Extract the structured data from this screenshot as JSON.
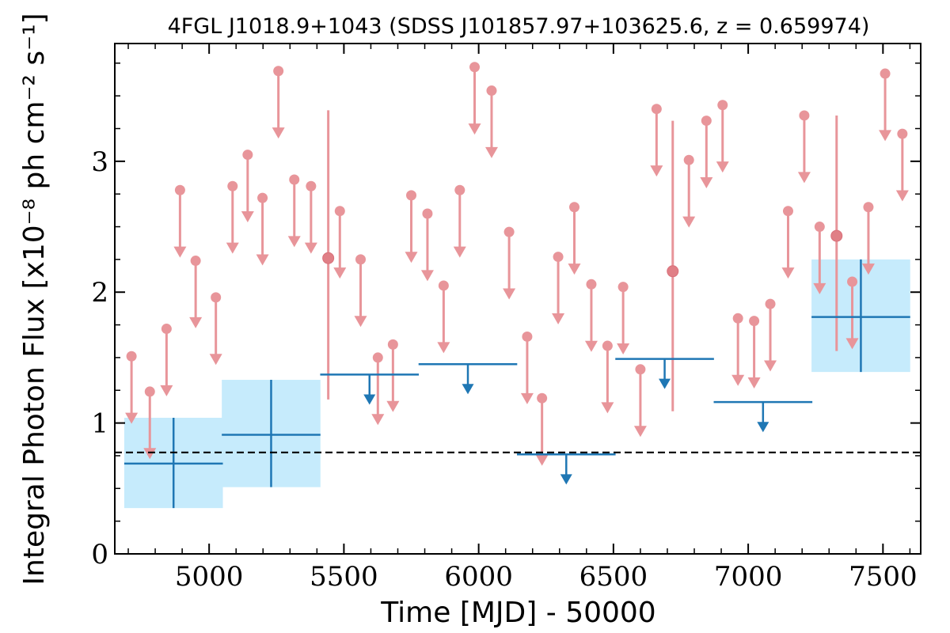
{
  "chart_data": {
    "type": "scatter",
    "title": "4FGL J1018.9+1043 (SDSS J101857.97+103625.6, z = 0.659974)",
    "xlabel": "Time [MJD] - 50000",
    "ylabel": "Integral Photon Flux [x10⁻⁸ ph cm⁻² s⁻¹]",
    "xlim": [
      4650,
      7640
    ],
    "ylim": [
      0,
      3.9
    ],
    "x_ticks": [
      5000,
      5500,
      6000,
      6500,
      7000,
      7500
    ],
    "x_tick_labels": [
      "5000",
      "5500",
      "6000",
      "6500",
      "7000",
      "7500"
    ],
    "y_ticks": [
      0,
      1,
      2,
      3
    ],
    "y_tick_labels": [
      "0",
      "1",
      "2",
      "3"
    ],
    "grid": false,
    "reference_line": {
      "y": 0.775,
      "style": "dashed",
      "color": "#000000"
    },
    "colors": {
      "short_bins": "#e8959a",
      "long_bins": "#1f77b4",
      "uncertainty_box": "#c6ebfc"
    },
    "long_bins": {
      "detections": [
        {
          "x": 4868,
          "xerr": 183,
          "y": 0.69,
          "ylo": 0.35,
          "yhi": 1.04
        },
        {
          "x": 5230,
          "xerr": 183,
          "y": 0.91,
          "ylo": 0.51,
          "yhi": 1.33
        },
        {
          "x": 7418,
          "xerr": 183,
          "y": 1.81,
          "ylo": 1.39,
          "yhi": 2.25
        }
      ],
      "upper_limits": [
        {
          "x": 5595,
          "xerr": 183,
          "y": 1.37
        },
        {
          "x": 5960,
          "xerr": 183,
          "y": 1.45
        },
        {
          "x": 6325,
          "xerr": 183,
          "y": 0.76
        },
        {
          "x": 6690,
          "xerr": 183,
          "y": 1.49
        },
        {
          "x": 7055,
          "xerr": 183,
          "y": 1.16
        }
      ]
    },
    "short_bins": {
      "upper_limits": [
        {
          "x": 4712,
          "y": 1.51
        },
        {
          "x": 4780,
          "y": 1.24
        },
        {
          "x": 4842,
          "y": 1.72
        },
        {
          "x": 4892,
          "y": 2.78
        },
        {
          "x": 4950,
          "y": 2.24
        },
        {
          "x": 5025,
          "y": 1.96
        },
        {
          "x": 5087,
          "y": 2.81
        },
        {
          "x": 5143,
          "y": 3.05
        },
        {
          "x": 5198,
          "y": 2.72
        },
        {
          "x": 5257,
          "y": 3.69
        },
        {
          "x": 5316,
          "y": 2.86
        },
        {
          "x": 5378,
          "y": 2.81
        },
        {
          "x": 5485,
          "y": 2.62
        },
        {
          "x": 5562,
          "y": 2.25
        },
        {
          "x": 5626,
          "y": 1.5
        },
        {
          "x": 5682,
          "y": 1.6
        },
        {
          "x": 5750,
          "y": 2.74
        },
        {
          "x": 5810,
          "y": 2.6
        },
        {
          "x": 5870,
          "y": 2.05
        },
        {
          "x": 5930,
          "y": 2.78
        },
        {
          "x": 5985,
          "y": 3.72
        },
        {
          "x": 6048,
          "y": 3.54
        },
        {
          "x": 6113,
          "y": 2.46
        },
        {
          "x": 6180,
          "y": 1.66
        },
        {
          "x": 6235,
          "y": 1.19
        },
        {
          "x": 6295,
          "y": 2.27
        },
        {
          "x": 6355,
          "y": 2.65
        },
        {
          "x": 6418,
          "y": 2.06
        },
        {
          "x": 6478,
          "y": 1.59
        },
        {
          "x": 6536,
          "y": 2.04
        },
        {
          "x": 6600,
          "y": 1.41
        },
        {
          "x": 6660,
          "y": 3.4
        },
        {
          "x": 6780,
          "y": 3.01
        },
        {
          "x": 6845,
          "y": 3.31
        },
        {
          "x": 6905,
          "y": 3.43
        },
        {
          "x": 6962,
          "y": 1.8
        },
        {
          "x": 7022,
          "y": 1.78
        },
        {
          "x": 7082,
          "y": 1.91
        },
        {
          "x": 7148,
          "y": 2.62
        },
        {
          "x": 7208,
          "y": 3.35
        },
        {
          "x": 7265,
          "y": 2.5
        },
        {
          "x": 7386,
          "y": 2.08
        },
        {
          "x": 7446,
          "y": 2.65
        },
        {
          "x": 7508,
          "y": 3.67
        },
        {
          "x": 7572,
          "y": 3.21
        }
      ],
      "detections": [
        {
          "x": 5442,
          "y": 2.26,
          "ylo": 1.18,
          "yhi": 3.39
        },
        {
          "x": 6720,
          "y": 2.16,
          "ylo": 1.09,
          "yhi": 3.31
        },
        {
          "x": 7328,
          "y": 2.43,
          "ylo": 1.55,
          "yhi": 3.35
        }
      ]
    }
  }
}
